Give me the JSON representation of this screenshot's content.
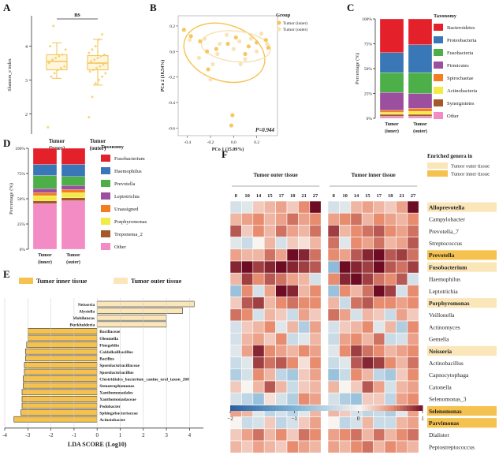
{
  "chart_data": [
    {
      "id": "A",
      "type": "box",
      "panel_label": "A",
      "ylabel": "Shannon_e index",
      "yticks": [
        2,
        3,
        4
      ],
      "ylim": [
        1.4,
        4.9
      ],
      "categories": [
        "Tumor\n(inner)",
        "Tumor\n(outer)"
      ],
      "significance": "ns",
      "boxes": [
        {
          "min": 3.05,
          "q1": 3.3,
          "median": 3.55,
          "q3": 3.75,
          "max": 4.1,
          "points": [
            1.6,
            3.1,
            3.2,
            3.3,
            3.35,
            3.4,
            3.5,
            3.6,
            3.65,
            3.7,
            3.75,
            3.9,
            4.0,
            4.6
          ]
        },
        {
          "min": 2.85,
          "q1": 3.3,
          "median": 3.5,
          "q3": 3.72,
          "max": 4.2,
          "points": [
            1.9,
            2.5,
            2.9,
            3.0,
            3.1,
            3.2,
            3.25,
            3.3,
            3.35,
            3.4,
            3.45,
            3.5,
            3.55,
            3.6,
            3.65,
            3.7,
            3.75,
            3.8,
            3.9,
            4.0,
            4.2,
            4.35
          ]
        }
      ]
    },
    {
      "id": "B",
      "type": "scatter",
      "panel_label": "B",
      "xlabel": "PCo 1 (15.09%)",
      "ylabel": "PCo 2 (10.54%)",
      "xticks": [
        -0.4,
        -0.2,
        0.0,
        0.2
      ],
      "yticks": [
        0.2,
        0.0,
        -0.2,
        -0.4,
        -0.6
      ],
      "xlim": [
        -0.48,
        0.38
      ],
      "ylim": [
        -0.66,
        0.28
      ],
      "annotation": "P=0.944",
      "legend_title": "Group",
      "series": [
        {
          "name": "Tumor (inner)",
          "color": "#F5C24F",
          "x": [
            -0.43,
            -0.37,
            -0.29,
            -0.23,
            -0.15,
            -0.22,
            -0.05,
            0.02,
            0.1,
            0.13,
            0.2,
            0.28,
            0.3,
            -0.01,
            -0.02
          ],
          "y": [
            0.17,
            0.12,
            0.08,
            0.0,
            0.02,
            -0.14,
            0.06,
            0.11,
            -0.02,
            0.04,
            0.07,
            0.09,
            0.03,
            -0.5,
            -0.58
          ]
        },
        {
          "name": "Tumor (outer)",
          "color": "#F7E1B0",
          "x": [
            -0.38,
            -0.3,
            -0.25,
            -0.18,
            -0.12,
            -0.06,
            0.0,
            0.05,
            0.1,
            0.15,
            0.2,
            0.24,
            0.29,
            -0.2,
            -0.14,
            0.06
          ],
          "y": [
            0.09,
            -0.05,
            0.1,
            -0.1,
            0.06,
            0.13,
            0.02,
            0.08,
            -0.06,
            0.1,
            0.0,
            0.14,
            0.06,
            -0.22,
            -0.02,
            -0.1
          ]
        }
      ],
      "ellipses": [
        {
          "group": "Tumor (inner)",
          "cx": -0.08,
          "cy": -0.01,
          "rx": 0.36,
          "ry": 0.22,
          "angle": 18
        },
        {
          "group": "Tumor (outer)",
          "cx": 0.02,
          "cy": 0.04,
          "rx": 0.3,
          "ry": 0.12,
          "angle": 6
        }
      ]
    },
    {
      "id": "C",
      "type": "stacked_bar",
      "panel_label": "C",
      "ylabel": "Percentage (%)",
      "yticks": [
        "0%",
        "25%",
        "50%",
        "75%",
        "100%"
      ],
      "categories": [
        "Tumor\n(inner)",
        "Tumor\n(outer)"
      ],
      "legend_title": "Taxonomy",
      "series": [
        {
          "name": "Other",
          "color": "#F38BC4",
          "values": [
            2,
            2
          ]
        },
        {
          "name": "Synergistetes",
          "color": "#A5592B",
          "values": [
            2,
            2
          ]
        },
        {
          "name": "Actinobacteria",
          "color": "#F3EB45",
          "values": [
            2,
            3
          ]
        },
        {
          "name": "Spirochaetae",
          "color": "#F47D20",
          "values": [
            2,
            3
          ]
        },
        {
          "name": "Firmicutes",
          "color": "#9B4F9E",
          "values": [
            18,
            15
          ]
        },
        {
          "name": "Fusobacteria",
          "color": "#4CAF48",
          "values": [
            20,
            21
          ]
        },
        {
          "name": "Proteobacteria",
          "color": "#3A77B6",
          "values": [
            20,
            28
          ]
        },
        {
          "name": "Bacteroidetes",
          "color": "#E4202B",
          "values": [
            34,
            26
          ]
        }
      ]
    },
    {
      "id": "D",
      "type": "stacked_bar",
      "panel_label": "D",
      "ylabel": "Percentage (%)",
      "yticks": [
        "0%",
        "25%",
        "50%",
        "75%",
        "100%"
      ],
      "categories": [
        "Tumor\n(inner)",
        "Tumor\n(outer)"
      ],
      "legend_title": "Taxonomy",
      "series": [
        {
          "name": "Other",
          "color": "#F38BC4",
          "values": [
            45,
            48
          ]
        },
        {
          "name": "Treponema_2",
          "color": "#A5592B",
          "values": [
            3,
            3
          ]
        },
        {
          "name": "Porphyromonas",
          "color": "#F3EB45",
          "values": [
            5,
            5
          ]
        },
        {
          "name": "Unassigned",
          "color": "#F47D20",
          "values": [
            3,
            3
          ]
        },
        {
          "name": "Leptotrichia",
          "color": "#9B4F9E",
          "values": [
            4,
            4
          ]
        },
        {
          "name": "Prevotella",
          "color": "#4CAF48",
          "values": [
            13,
            9
          ]
        },
        {
          "name": "Haemophilus",
          "color": "#3A77B6",
          "values": [
            11,
            12
          ]
        },
        {
          "name": "Fusobacterium",
          "color": "#E4202B",
          "values": [
            16,
            16
          ]
        }
      ]
    },
    {
      "id": "E",
      "type": "lefse_bar",
      "panel_label": "E",
      "xlabel": "LDA SCORE (Log10)",
      "xticks": [
        -4,
        -3,
        -2,
        -1,
        0,
        1,
        2,
        3,
        4
      ],
      "xlim": [
        -4,
        4.6
      ],
      "legend": [
        {
          "name": "Tumor inner tissue",
          "color": "#F5C24F"
        },
        {
          "name": "Tumor outer tissue",
          "color": "#FBE6BA"
        }
      ],
      "bars": [
        {
          "label": "Neisseria",
          "value": 4.2,
          "group": "outer"
        },
        {
          "label": "Alysiella",
          "value": 3.7,
          "group": "outer"
        },
        {
          "label": "Mobiluncus",
          "value": 3.0,
          "group": "outer"
        },
        {
          "label": "Burkholderia",
          "value": 3.0,
          "group": "outer"
        },
        {
          "label": "Bacillaceae",
          "value": -3.0,
          "group": "inner"
        },
        {
          "label": "Oleomella",
          "value": -3.0,
          "group": "inner"
        },
        {
          "label": "Finegoldia",
          "value": -3.05,
          "group": "inner"
        },
        {
          "label": "Caldalkalibacillus",
          "value": -3.1,
          "group": "inner"
        },
        {
          "label": "Bacillus",
          "value": -3.1,
          "group": "inner"
        },
        {
          "label": "Sporolactobacillaceae",
          "value": -3.15,
          "group": "inner"
        },
        {
          "label": "Sporolactobacillus",
          "value": -3.15,
          "group": "inner"
        },
        {
          "label": "Clostridiales_bacterium_canine_oral_taxon_260",
          "value": -3.2,
          "group": "inner"
        },
        {
          "label": "Stenotrophomonas",
          "value": -3.2,
          "group": "inner"
        },
        {
          "label": "Xanthomonadales",
          "value": -3.25,
          "group": "inner"
        },
        {
          "label": "Xanthomonadaceae",
          "value": -3.25,
          "group": "inner"
        },
        {
          "label": "Pedobacter",
          "value": -3.25,
          "group": "inner"
        },
        {
          "label": "Sphingobacteriaceae",
          "value": -3.3,
          "group": "inner"
        },
        {
          "label": "Acinetobacter",
          "value": -3.6,
          "group": "inner"
        }
      ]
    },
    {
      "id": "F",
      "type": "heatmap",
      "panel_label": "F",
      "column_groups": [
        "Tumor outer tissue",
        "Tumor inner tissue"
      ],
      "columns": [
        "8",
        "10",
        "14",
        "15",
        "17",
        "18",
        "21",
        "27"
      ],
      "rows": [
        "Alloprevotella",
        "Campylobacter",
        "Prevotella_7",
        "Streptococcus",
        "Prevotella",
        "Fusobacterium",
        "Haemophilus",
        "Leptotrichia",
        "Porphyromonas",
        "Veillonella",
        "Actinomyces",
        "Gemella",
        "Neisseria",
        "Actinobacillus",
        "Capnocytophaga",
        "Catonella",
        "Selenomonas_3",
        "Selenomonas",
        "Parvimonas",
        "Dialister",
        "Peptostreptococcus"
      ],
      "row_highlight": {
        "Alloprevotella": "outer",
        "Prevotella": "inner",
        "Fusobacterium": "outer",
        "Porphyromonas": "outer",
        "Neisseria": "outer",
        "Selenomonas": "inner",
        "Parvimonas": "inner"
      },
      "legend_title": "Enriched genera in",
      "legend": [
        {
          "name": "Tumor outer tissue",
          "color": "#FBE6BA"
        },
        {
          "name": "Tumor inner tissue",
          "color": "#F5C24F"
        }
      ],
      "colorbar": {
        "min": -2,
        "max": 1,
        "ticks": [
          -2,
          -1,
          0,
          1
        ]
      },
      "values_outer": [
        [
          -0.3,
          -0.2,
          0.2,
          0.3,
          0.4,
          0.2,
          0.5,
          1.2
        ],
        [
          0.3,
          0.4,
          0.5,
          0.3,
          0.4,
          0.6,
          0.4,
          0.5
        ],
        [
          0.7,
          0.2,
          0.5,
          0.3,
          0.6,
          0.4,
          0.3,
          0.6
        ],
        [
          -0.2,
          -0.4,
          0.0,
          0.3,
          -0.3,
          0.2,
          0.1,
          0.3
        ],
        [
          0.4,
          0.3,
          0.3,
          0.6,
          0.4,
          1.0,
          0.9,
          0.6
        ],
        [
          0.9,
          1.2,
          0.8,
          0.9,
          1.0,
          0.9,
          0.8,
          0.7
        ],
        [
          0.3,
          0.8,
          0.5,
          0.7,
          0.6,
          0.4,
          0.3,
          -0.3
        ],
        [
          -0.8,
          0.5,
          -0.3,
          0.4,
          1.3,
          0.9,
          0.3,
          0.5
        ],
        [
          0.2,
          0.7,
          0.8,
          0.3,
          0.5,
          0.6,
          0.5,
          0.5
        ],
        [
          0.6,
          0.5,
          -0.3,
          0.3,
          0.2,
          -0.4,
          0.4,
          0.2
        ],
        [
          -0.3,
          0.2,
          0.3,
          0.5,
          -0.2,
          0.3,
          -0.6,
          0.4
        ],
        [
          -0.3,
          0.3,
          0.4,
          0.2,
          0.5,
          -0.4,
          -0.2,
          0.3
        ],
        [
          -0.2,
          0.4,
          0.9,
          0.5,
          0.4,
          0.3,
          0.5,
          0.4
        ],
        [
          -0.4,
          -0.2,
          0.8,
          0.6,
          0.7,
          0.5,
          0.1,
          0.5
        ],
        [
          -0.6,
          -0.3,
          0.5,
          0.3,
          -0.5,
          -0.7,
          0.2,
          0.4
        ],
        [
          0.2,
          0.0,
          0.3,
          0.7,
          0.3,
          -0.4,
          0.2,
          0.3
        ],
        [
          -0.3,
          -0.5,
          -0.8,
          0.1,
          -0.3,
          -0.6,
          0.5,
          0.4
        ],
        [
          0.4,
          0.3,
          -0.2,
          -0.5,
          -0.3,
          -0.5,
          -0.2,
          0.3
        ],
        [
          0.0,
          -0.4,
          -0.3,
          0.2,
          -0.5,
          -0.3,
          0.2,
          0.4
        ],
        [
          0.2,
          0.4,
          0.6,
          0.3,
          0.5,
          0.2,
          0.6,
          0.5
        ],
        [
          0.3,
          0.2,
          0.4,
          0.3,
          0.2,
          0.5,
          0.4,
          0.3
        ]
      ],
      "values_inner": [
        [
          -0.3,
          -0.2,
          0.3,
          0.4,
          0.3,
          0.2,
          0.4,
          1.2
        ],
        [
          0.4,
          0.5,
          0.6,
          0.3,
          0.5,
          0.4,
          0.3,
          0.5
        ],
        [
          0.8,
          0.3,
          0.5,
          0.6,
          0.7,
          0.5,
          0.4,
          0.6
        ],
        [
          0.6,
          -0.2,
          0.5,
          0.4,
          0.6,
          0.3,
          0.4,
          0.7
        ],
        [
          0.5,
          0.4,
          0.7,
          0.9,
          1.0,
          0.7,
          0.8,
          0.6
        ],
        [
          -0.9,
          1.1,
          0.9,
          0.8,
          1.1,
          0.7,
          0.6,
          0.8
        ],
        [
          0.5,
          0.9,
          1.3,
          0.8,
          0.6,
          0.5,
          0.7,
          -0.3
        ],
        [
          -0.8,
          0.5,
          0.3,
          0.6,
          1.2,
          0.8,
          -0.3,
          0.5
        ],
        [
          0.3,
          -0.4,
          0.6,
          0.7,
          0.5,
          0.5,
          0.4,
          0.5
        ],
        [
          0.6,
          0.4,
          -0.3,
          0.3,
          0.2,
          -0.4,
          0.4,
          0.2
        ],
        [
          -0.3,
          0.2,
          0.3,
          0.5,
          -0.2,
          0.3,
          -0.6,
          0.5
        ],
        [
          -0.4,
          0.4,
          0.5,
          0.3,
          0.6,
          -0.4,
          -0.3,
          0.4
        ],
        [
          -0.2,
          0.5,
          0.8,
          0.6,
          0.5,
          0.3,
          0.4,
          0.5
        ],
        [
          -0.4,
          -0.2,
          0.7,
          0.9,
          0.8,
          0.5,
          0.3,
          0.6
        ],
        [
          -0.8,
          -0.4,
          0.5,
          0.3,
          -0.5,
          -0.7,
          0.2,
          0.5
        ],
        [
          0.3,
          0.0,
          0.2,
          0.7,
          0.4,
          -0.3,
          0.3,
          0.4
        ],
        [
          -0.3,
          -0.6,
          -0.8,
          0.2,
          0.2,
          -0.5,
          0.4,
          0.5
        ],
        [
          0.3,
          0.2,
          -0.3,
          -0.5,
          -0.4,
          -0.6,
          -0.2,
          0.4
        ],
        [
          0.0,
          -0.5,
          -0.3,
          0.3,
          -0.4,
          -0.4,
          0.3,
          0.4
        ],
        [
          0.4,
          0.5,
          0.6,
          0.3,
          0.6,
          0.3,
          0.5,
          0.6
        ],
        [
          0.4,
          0.3,
          0.5,
          0.6,
          0.3,
          0.5,
          0.4,
          0.3
        ]
      ]
    }
  ]
}
